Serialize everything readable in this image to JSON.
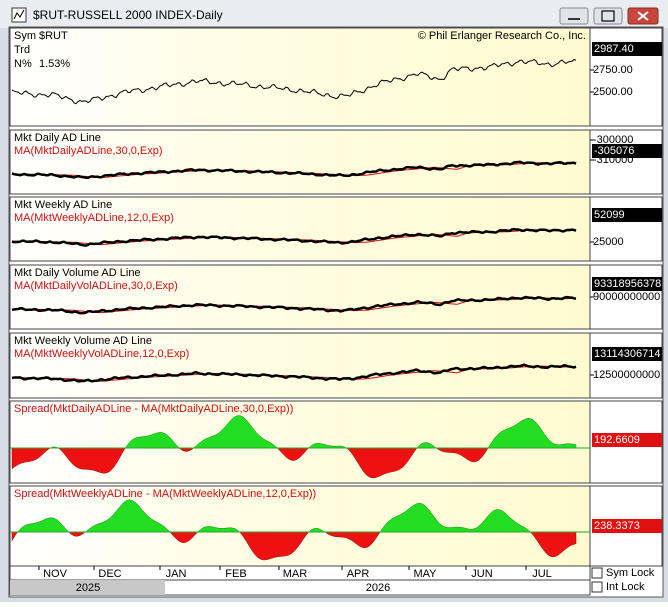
{
  "window": {
    "title": "$RUT-RUSSELL 2000 INDEX-Daily"
  },
  "panels": [
    {
      "info": [
        {
          "label": "Sym",
          "value": "$RUT"
        },
        {
          "label": "Trd"
        },
        {
          "label": "N%",
          "value": "1.53%"
        }
      ],
      "credit": "© Phil Erlanger Research Co., Inc.",
      "axis_labels": [
        "2750.00",
        "2500.00"
      ],
      "last_value": "2987.40"
    },
    {
      "title": "Mkt Daily AD Line",
      "ma": "MA(MktDailyADLine,30,0,Exp)",
      "axis_labels": [
        "-300000",
        "-310000"
      ],
      "last_value": "-305076"
    },
    {
      "title": "Mkt Weekly AD Line",
      "ma": "MA(MktWeeklyADLine,12,0,Exp)",
      "axis_labels": [
        "25000"
      ],
      "last_value": "52099"
    },
    {
      "title": "Mkt Daily Volume AD Line",
      "ma": "MA(MktDailyVolADLine,30,0,Exp)",
      "axis_labels": [
        "90000000000"
      ],
      "last_value": "93318956378"
    },
    {
      "title": "Mkt Weekly Volume AD Line",
      "ma": "MA(MktWeeklyVolADLine,12,0,Exp)",
      "axis_labels": [
        "12500000000"
      ],
      "last_value": "13114306714"
    },
    {
      "title": "Spread(MktDailyADLine - MA(MktDailyADLine,30,0,Exp))",
      "last_value": "192.6609"
    },
    {
      "title": "Spread(MktWeeklyADLine - MA(MktWeeklyADLine,12,0,Exp))",
      "last_value": "238.3373"
    }
  ],
  "x_axis": {
    "months": [
      "NOV",
      "DEC",
      "JAN",
      "FEB",
      "MAR",
      "APR",
      "MAY",
      "JUN",
      "JUL"
    ],
    "years": [
      "2025",
      "2026"
    ]
  },
  "checkboxes": [
    "Sym Lock",
    "Int Lock"
  ]
}
